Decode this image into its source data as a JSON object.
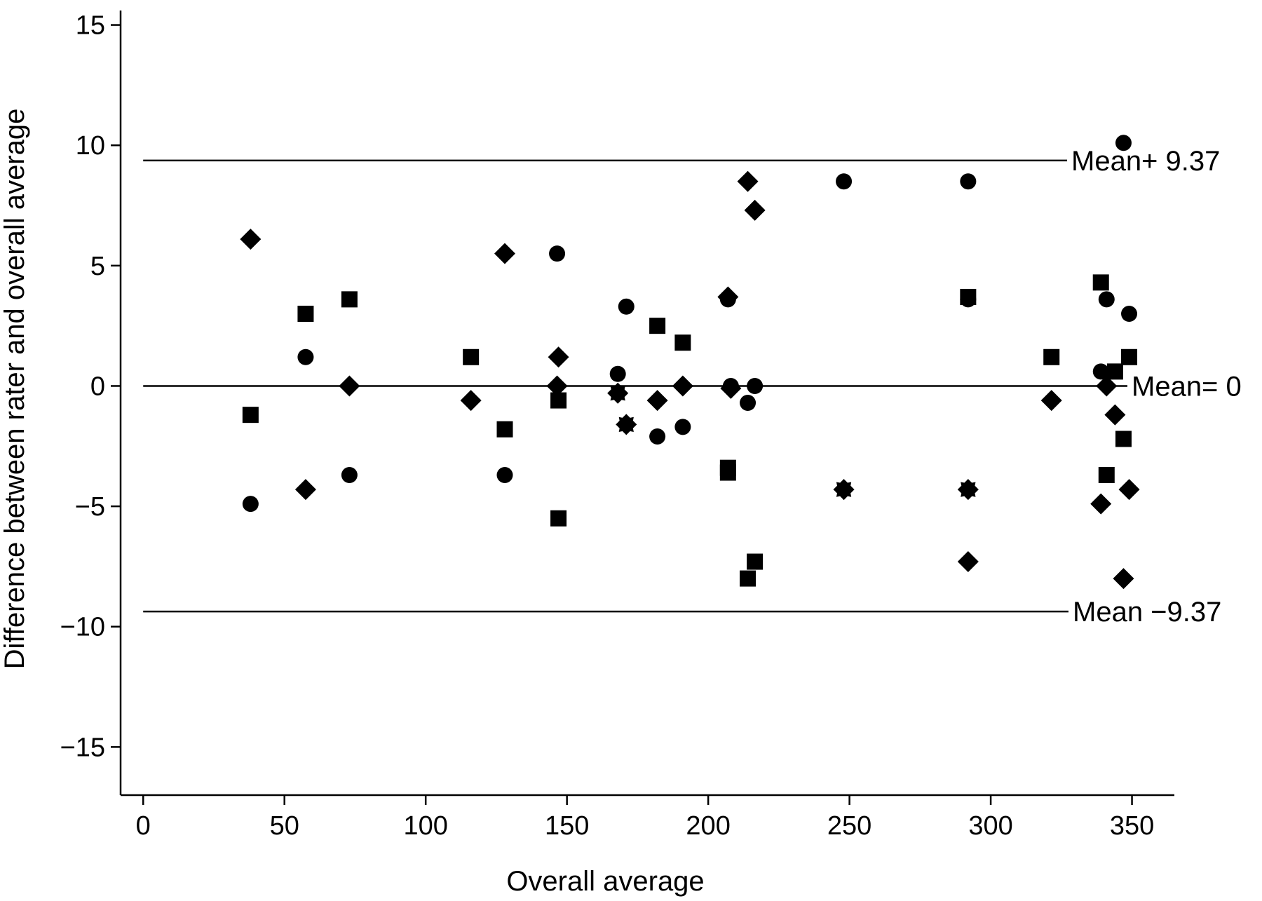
{
  "chart_data": {
    "type": "scatter",
    "title": "",
    "xlabel": "Overall average",
    "ylabel": "Difference between rater and overall average",
    "xlim": [
      -8,
      365
    ],
    "ylim": [
      -17,
      15.6
    ],
    "x_ticks": [
      0,
      50,
      100,
      150,
      200,
      250,
      300,
      350
    ],
    "y_ticks": [
      15,
      10,
      5,
      0,
      -5,
      -10,
      -15
    ],
    "x_tick_labels": [
      "0",
      "50",
      "100",
      "150",
      "200",
      "250",
      "300",
      "350"
    ],
    "y_tick_labels": [
      "15",
      "10",
      "5",
      "0",
      "−5",
      "−10",
      "−15"
    ],
    "grid": false,
    "reference_lines": [
      {
        "y": 9.37,
        "label": "Mean+ 9.37"
      },
      {
        "y": 0,
        "label": "Mean= 0"
      },
      {
        "y": -9.37,
        "label": "Mean −9.37"
      }
    ],
    "series": [
      {
        "marker": "diamond",
        "points": [
          [
            38,
            6.1
          ],
          [
            57.5,
            -4.3
          ],
          [
            73,
            0
          ],
          [
            116,
            -0.6
          ],
          [
            128,
            5.5
          ],
          [
            146.5,
            0
          ],
          [
            147,
            1.2
          ],
          [
            168,
            -0.3
          ],
          [
            171,
            -1.6
          ],
          [
            182,
            -0.6
          ],
          [
            191,
            0
          ],
          [
            207,
            3.7
          ],
          [
            208,
            -0.1
          ],
          [
            214,
            8.5
          ],
          [
            216.5,
            7.3
          ],
          [
            248,
            -4.3
          ],
          [
            292,
            -4.3
          ],
          [
            292,
            -7.3
          ],
          [
            321.5,
            -0.6
          ],
          [
            339,
            -4.9
          ],
          [
            341,
            0
          ],
          [
            344,
            -1.2
          ],
          [
            347,
            -8
          ],
          [
            349,
            -4.3
          ]
        ]
      },
      {
        "marker": "circle",
        "points": [
          [
            38,
            -4.9
          ],
          [
            57.5,
            1.2
          ],
          [
            73,
            -3.7
          ],
          [
            128,
            -3.7
          ],
          [
            146.5,
            5.5
          ],
          [
            168,
            0.5
          ],
          [
            171,
            3.3
          ],
          [
            182,
            -2.1
          ],
          [
            191,
            -1.7
          ],
          [
            207,
            3.6
          ],
          [
            208,
            0
          ],
          [
            214,
            -0.7
          ],
          [
            216.5,
            0
          ],
          [
            248,
            8.5
          ],
          [
            292,
            8.5
          ],
          [
            292,
            3.6
          ],
          [
            339,
            0.6
          ],
          [
            341,
            3.6
          ],
          [
            347,
            10.1
          ],
          [
            349,
            3
          ]
        ]
      },
      {
        "marker": "square",
        "points": [
          [
            38,
            -1.2
          ],
          [
            57.5,
            3
          ],
          [
            73,
            3.6
          ],
          [
            116,
            1.2
          ],
          [
            128,
            -1.8
          ],
          [
            147,
            -0.6
          ],
          [
            147,
            -5.5
          ],
          [
            182,
            2.5
          ],
          [
            191,
            1.8
          ],
          [
            207,
            -3.4
          ],
          [
            207,
            -3.6
          ],
          [
            214,
            -8
          ],
          [
            216.5,
            -7.3
          ],
          [
            292,
            3.7
          ],
          [
            321.5,
            1.2
          ],
          [
            339,
            4.3
          ],
          [
            341,
            -3.7
          ],
          [
            344,
            0.6
          ],
          [
            347,
            -2.2
          ],
          [
            349,
            1.2
          ]
        ]
      },
      {
        "marker": "star",
        "points": [
          [
            168,
            -0.3
          ],
          [
            171,
            -1.6
          ],
          [
            248,
            -4.3
          ],
          [
            292,
            -4.3
          ]
        ]
      }
    ]
  }
}
